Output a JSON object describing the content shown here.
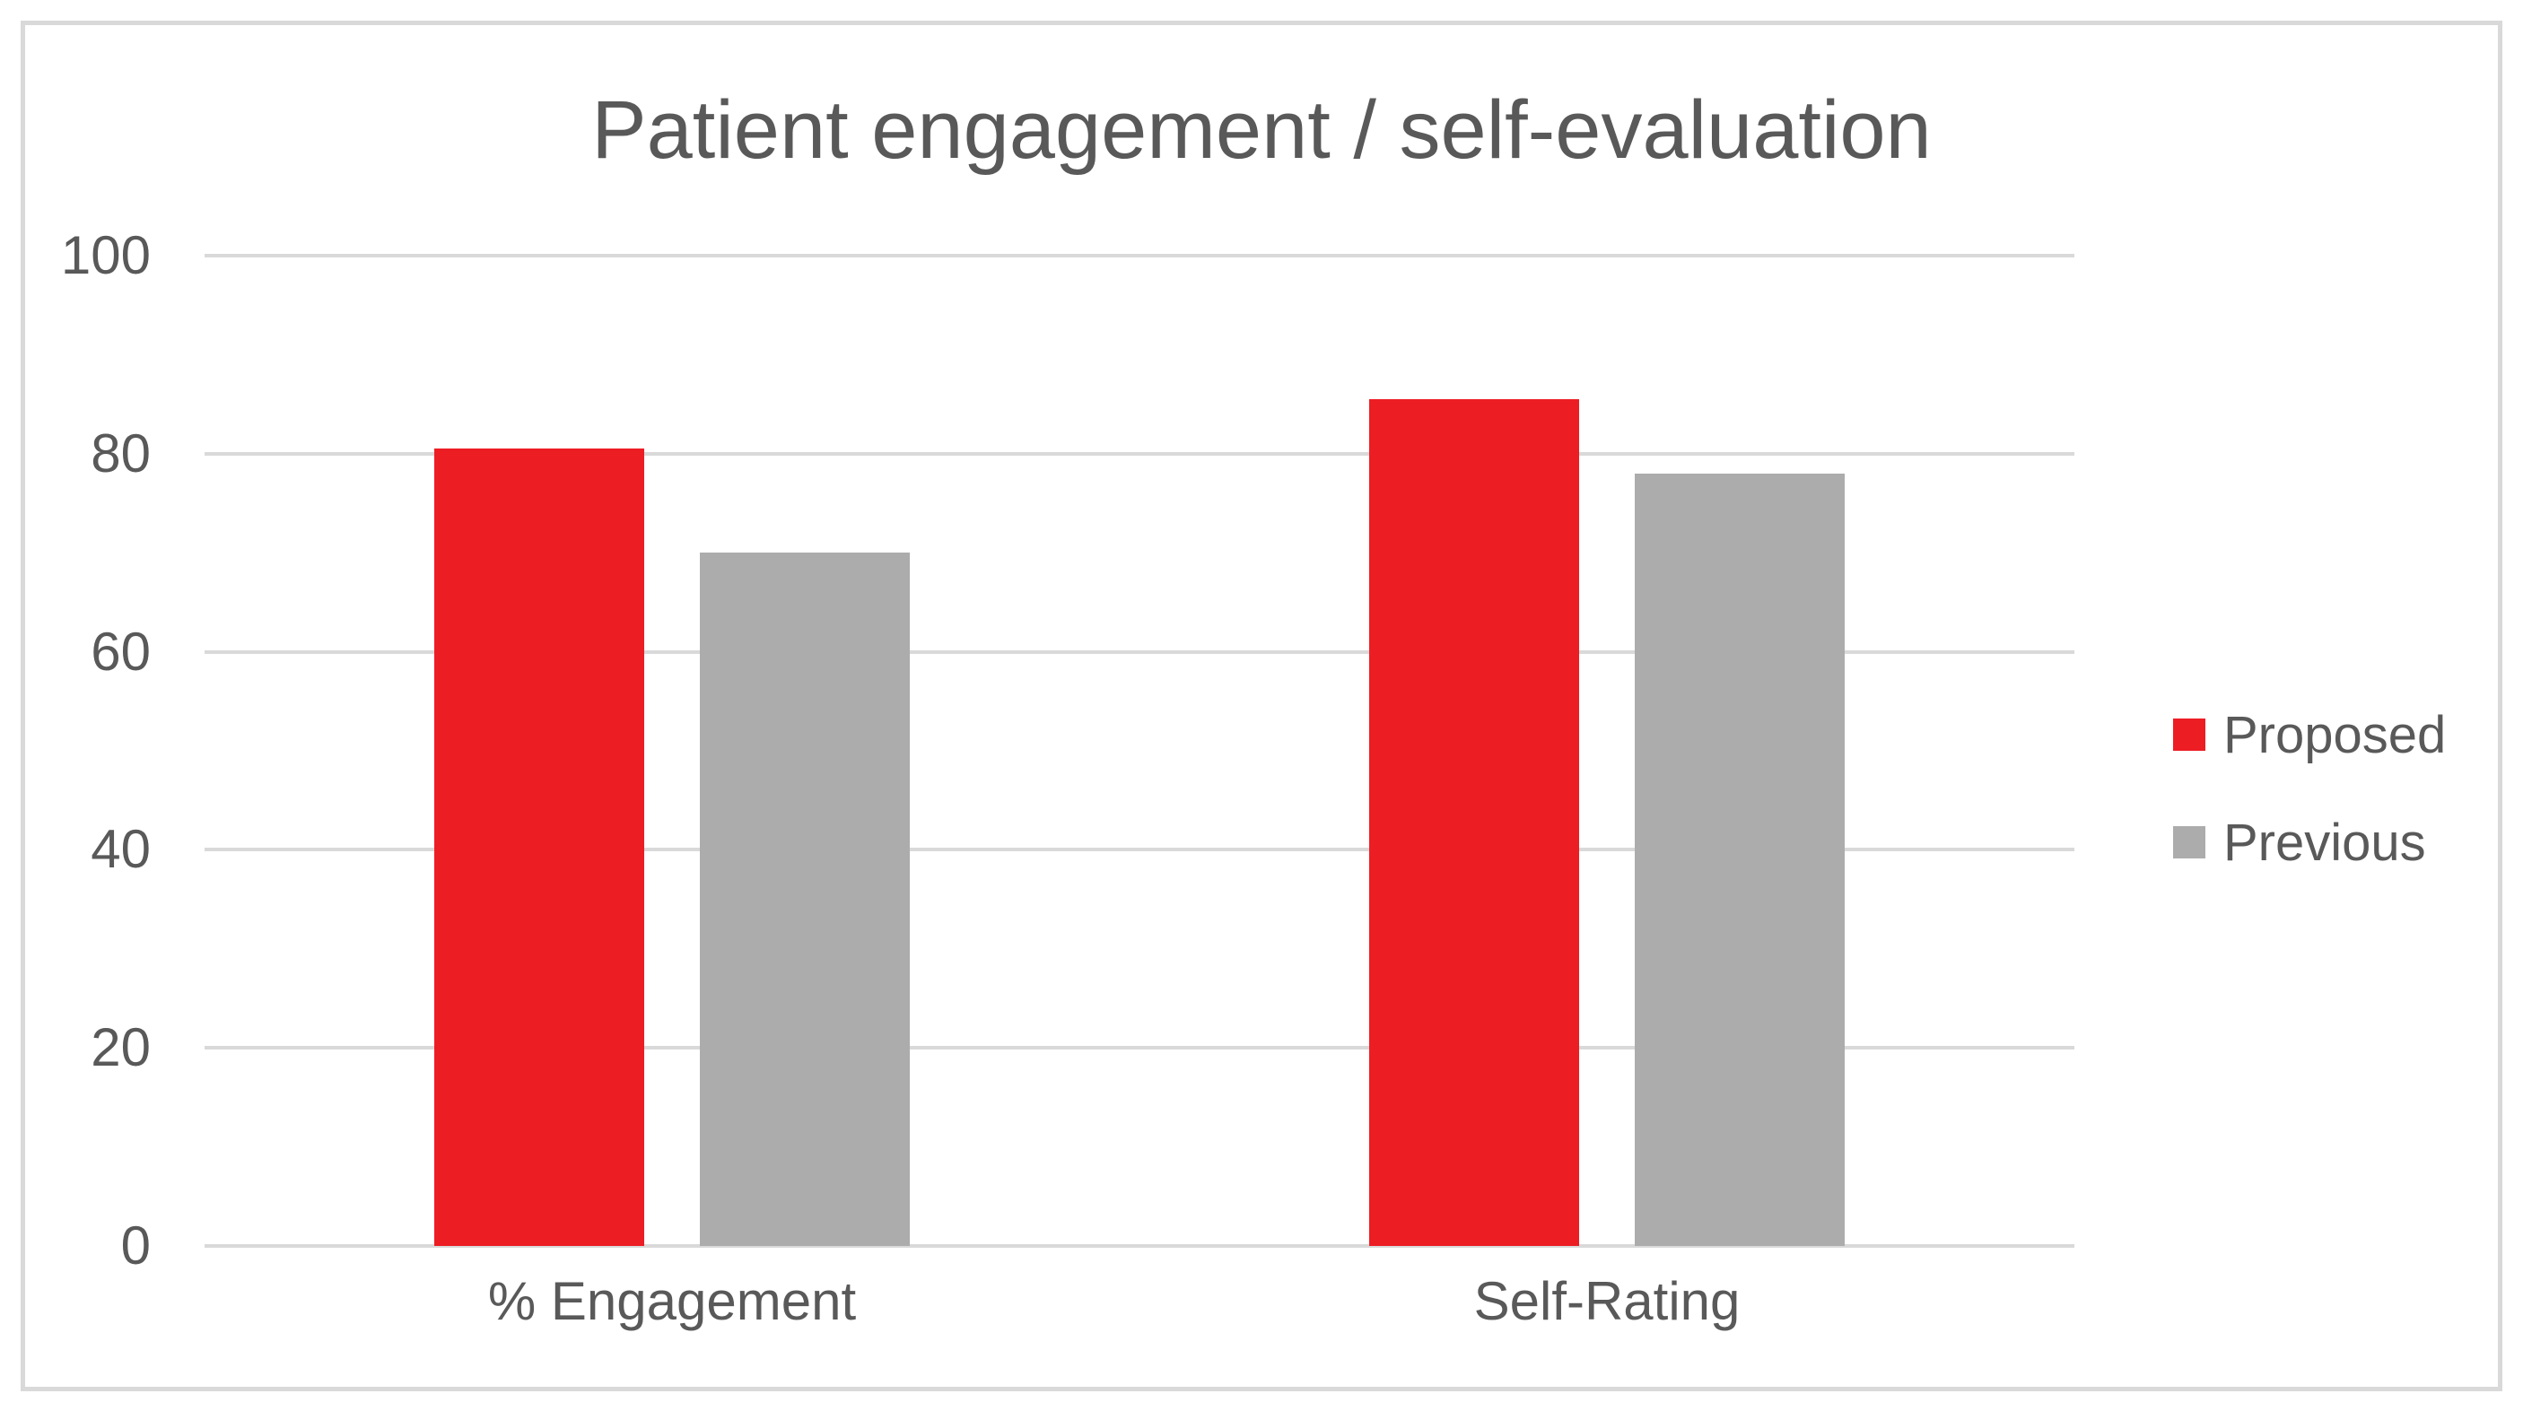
{
  "chart_data": {
    "type": "bar",
    "title": "Patient engagement / self-evaluation",
    "categories": [
      "% Engagement",
      "Self-Rating"
    ],
    "series": [
      {
        "name": "Proposed",
        "color": "#ED1D24",
        "values": [
          80.5,
          85.5
        ]
      },
      {
        "name": "Previous",
        "color": "#ACACAC",
        "values": [
          70,
          78
        ]
      }
    ],
    "xlabel": "",
    "ylabel": "",
    "ylim": [
      0,
      100
    ],
    "yticks": [
      0,
      20,
      40,
      60,
      80,
      100
    ],
    "grid": true,
    "legend_position": "middle-right",
    "colors": {
      "gridline": "#D9D9D9",
      "border": "#D9D9D9",
      "text": "#595959",
      "background": "#FFFFFF"
    }
  }
}
